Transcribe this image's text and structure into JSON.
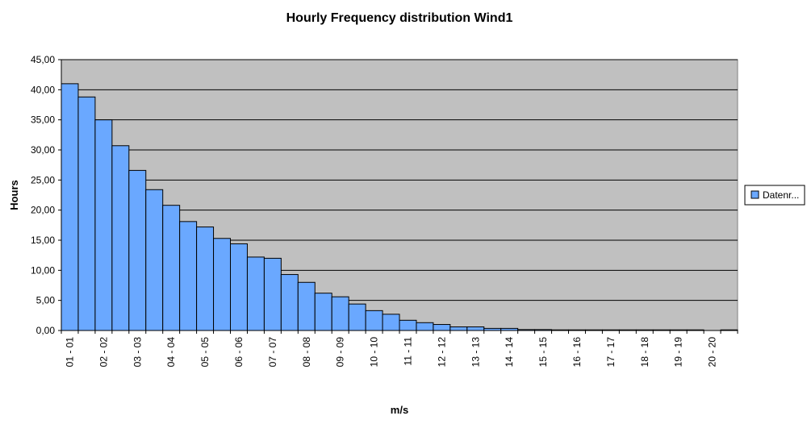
{
  "chart_data": {
    "type": "bar",
    "title": "Hourly Frequency distribution Wind1",
    "xlabel": "m/s",
    "ylabel": "Hours",
    "ylim": [
      0,
      45
    ],
    "y_ticks": [
      "0,00",
      "5,00",
      "10,00",
      "15,00",
      "20,00",
      "25,00",
      "30,00",
      "35,00",
      "40,00",
      "45,00"
    ],
    "grid": true,
    "legend_position": "right",
    "plot_background": "#C0C0C0",
    "bar_color": "#6AA8FF",
    "tick_labels": [
      "01 - 01",
      "02 - 02",
      "03 - 03",
      "04 - 04",
      "05 - 05",
      "06 - 06",
      "07 - 07",
      "08 - 08",
      "09 - 09",
      "10 - 10",
      "11 - 11",
      "12 - 12",
      "13 - 13",
      "14 - 14",
      "15 - 15",
      "16 - 16",
      "17 - 17",
      "18 - 18",
      "19 - 19",
      "20 - 20"
    ],
    "series": [
      {
        "name": "Datenr...",
        "values": [
          41.0,
          38.8,
          35.0,
          30.7,
          26.6,
          23.4,
          20.8,
          18.1,
          17.2,
          15.3,
          14.4,
          12.2,
          12.0,
          9.3,
          8.0,
          6.2,
          5.6,
          4.4,
          3.3,
          2.7,
          1.7,
          1.3,
          1.0,
          0.6,
          0.6,
          0.35,
          0.35,
          0.15,
          0.15,
          0.1,
          0.1,
          0.1,
          0.1,
          0.1,
          0.1,
          0.1,
          0.1,
          0.1,
          0.0,
          0.1
        ]
      }
    ]
  }
}
